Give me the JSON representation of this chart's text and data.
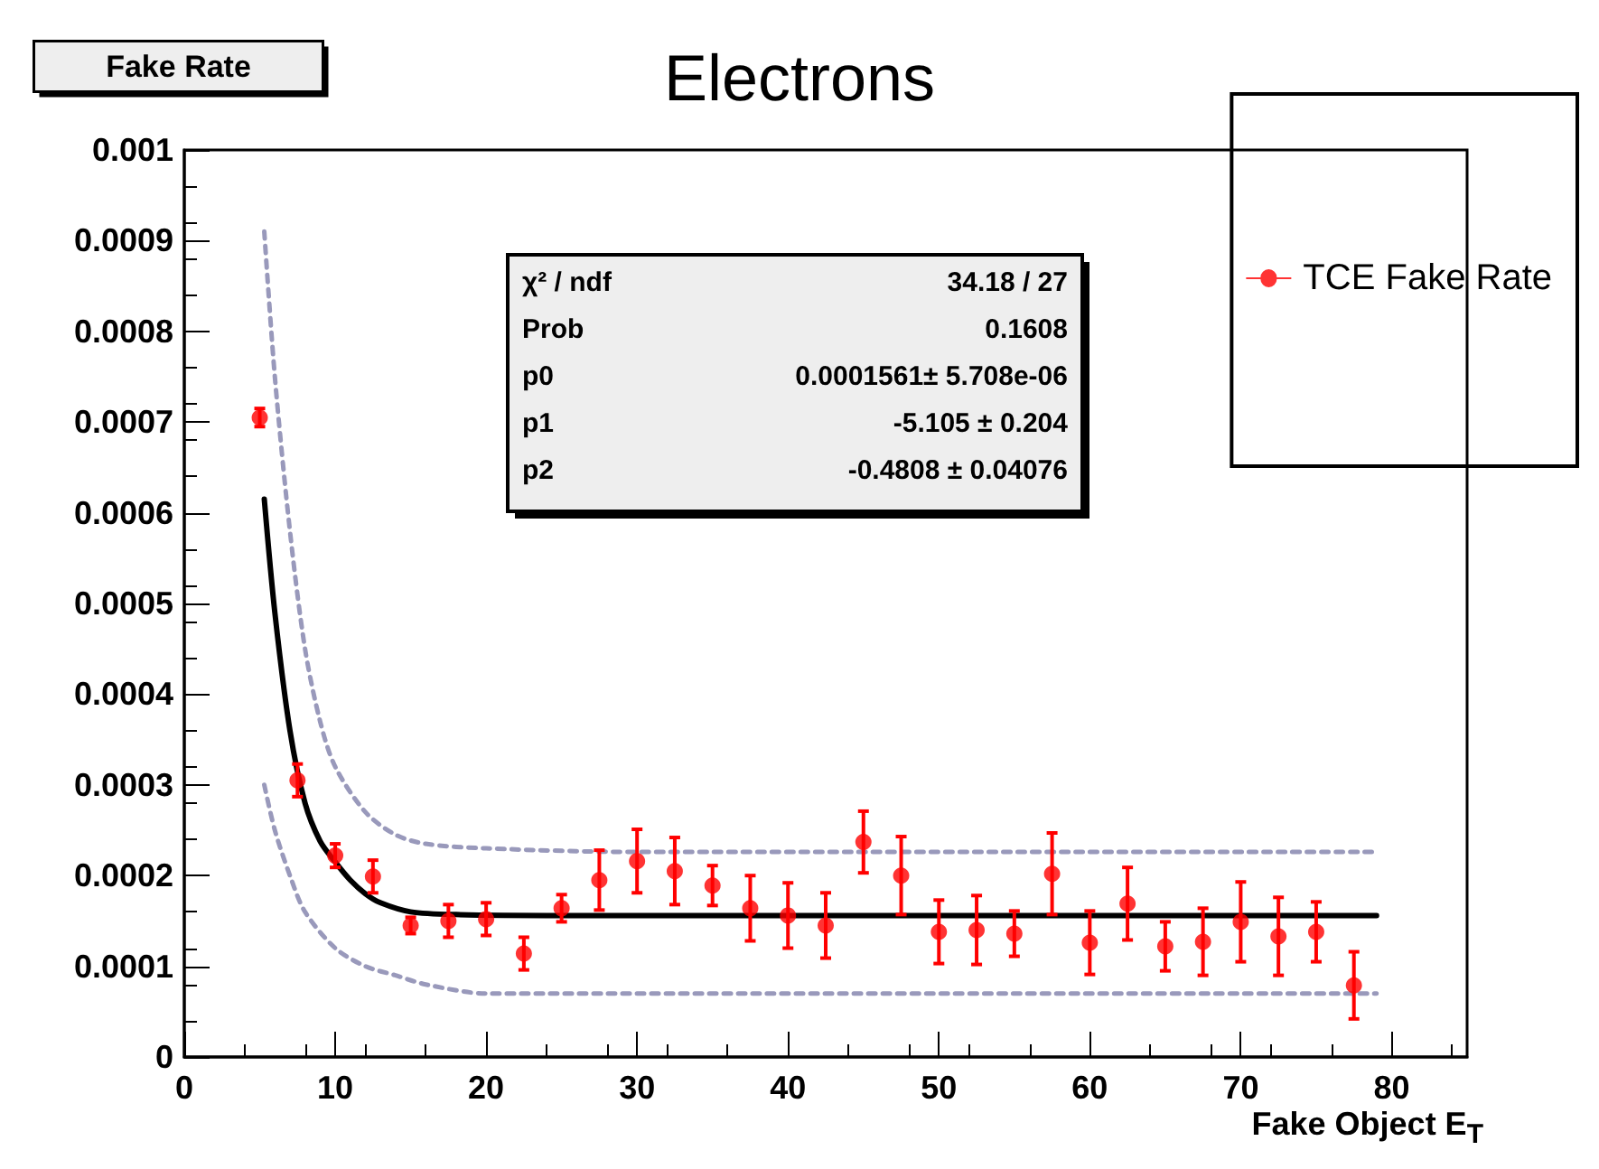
{
  "chart_data": {
    "type": "scatter",
    "title": "Electrons",
    "xlabel": "Fake Object E$_{T}$",
    "ylabel": "Fake Rate",
    "annotations": [
      "χ² / ndf",
      "34.18 / 27",
      "Prob",
      "0.1608",
      "p0",
      "0.0001561± 5.708e-06",
      "p1",
      "-5.105 ± 0.204",
      "p2",
      "-0.4808 ± 0.04076"
    ],
    "xlim": [
      0,
      85
    ],
    "xticks": [
      0,
      10,
      20,
      30,
      40,
      50,
      60,
      70,
      80
    ],
    "ylim": [
      0,
      0.001
    ],
    "yticks": [
      0,
      0.0001,
      0.0002,
      0.0003,
      0.0004,
      0.0005,
      0.0006,
      0.0007,
      0.0008,
      0.0009,
      0.001
    ],
    "grid": false,
    "legend": "top right",
    "series": [
      {
        "name": "TCE Fake Rate",
        "color": "#ff0000",
        "marker": "circle",
        "x": [
          5,
          7.5,
          10,
          12.5,
          15,
          17.5,
          20,
          22.5,
          25,
          27.5,
          30,
          32.5,
          35,
          37.5,
          40,
          42.5,
          45,
          47.5,
          50,
          52.5,
          55,
          57.5,
          60,
          62.5,
          65,
          67.5,
          70,
          72.5,
          75,
          77.5
        ],
        "values": [
          0.000705,
          0.000305,
          0.000222,
          0.000199,
          0.000145,
          0.00015,
          0.000152,
          0.000114,
          0.000164,
          0.000195,
          0.000216,
          0.000205,
          0.000189,
          0.000164,
          0.000156,
          0.000145,
          0.000237,
          0.0002,
          0.000138,
          0.00014,
          0.000136,
          0.000202,
          0.000126,
          0.000169,
          0.000122,
          0.000127,
          0.000149,
          0.000133,
          0.000138,
          7.9e-05
        ],
        "errors": [
          1e-05,
          1.8e-05,
          1.3e-05,
          1.8e-05,
          9e-06,
          1.8e-05,
          1.8e-05,
          1.8e-05,
          1.5e-05,
          3.3e-05,
          3.5e-05,
          3.7e-05,
          2.2e-05,
          3.6e-05,
          3.6e-05,
          3.6e-05,
          3.4e-05,
          4.3e-05,
          3.5e-05,
          3.8e-05,
          2.5e-05,
          4.5e-05,
          3.5e-05,
          4e-05,
          2.7e-05,
          3.7e-05,
          4.4e-05,
          4.3e-05,
          3.3e-05,
          3.7e-05
        ]
      },
      {
        "type": "line",
        "color": "#000000",
        "line_style": "solid",
        "marker": "none",
        "x": [
          5.3,
          6,
          7,
          8,
          9,
          10,
          11,
          12,
          13,
          15,
          18,
          25,
          79
        ],
        "values": [
          0.000615,
          0.00049,
          0.00036,
          0.00028,
          0.000238,
          0.000215,
          0.000195,
          0.00018,
          0.00017,
          0.00016,
          0.000157,
          0.000156,
          0.000156
        ]
      },
      {
        "type": "line",
        "color": "#9999bb",
        "line_style": "dashed",
        "marker": "none",
        "x": [
          5.3,
          6,
          7,
          8,
          9,
          10,
          12,
          14,
          16,
          20,
          30,
          79
        ],
        "values": [
          0.00091,
          0.00075,
          0.00058,
          0.00045,
          0.00037,
          0.00032,
          0.00027,
          0.000245,
          0.000235,
          0.00023,
          0.000226,
          0.000226
        ]
      },
      {
        "type": "line",
        "color": "#9999bb",
        "line_style": "dashed",
        "marker": "none",
        "x": [
          5.3,
          6,
          7,
          8,
          10,
          12,
          14,
          16,
          20,
          79
        ],
        "values": [
          0.0003,
          0.00025,
          0.0002,
          0.00016,
          0.00012,
          0.0001,
          9e-05,
          8e-05,
          7e-05,
          7e-05
        ]
      }
    ]
  }
}
